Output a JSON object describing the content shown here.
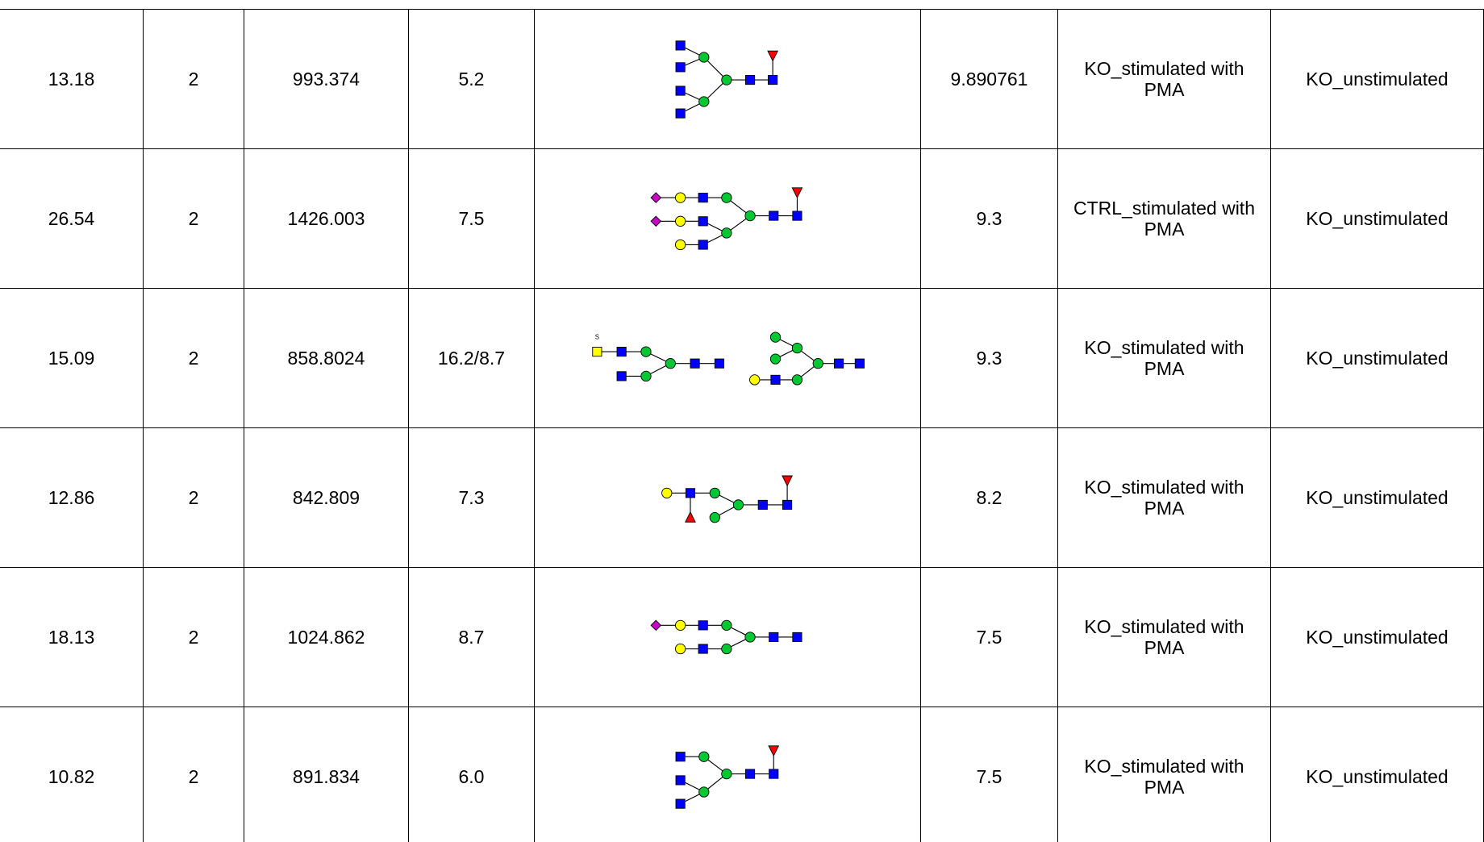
{
  "table": {
    "rows": [
      {
        "cells": [
          "13.18",
          "2",
          "993.374",
          "5.2",
          "9.890761",
          "KO_stimulated with PMA",
          "KO_unstimulated"
        ]
      },
      {
        "cells": [
          "26.54",
          "2",
          "1426.003",
          "7.5",
          "9.3",
          "CTRL_stimulated with PMA",
          "KO_unstimulated"
        ]
      },
      {
        "cells": [
          "15.09",
          "2",
          "858.8024",
          "16.2/8.7",
          "9.3",
          "KO_stimulated with PMA",
          "KO_unstimulated"
        ],
        "glycan_label": "S"
      },
      {
        "cells": [
          "12.86",
          "2",
          "842.809",
          "7.3",
          "8.2",
          "KO_stimulated with PMA",
          "KO_unstimulated"
        ]
      },
      {
        "cells": [
          "18.13",
          "2",
          "1024.862",
          "8.7",
          "7.5",
          "KO_stimulated with PMA",
          "KO_unstimulated"
        ]
      },
      {
        "cells": [
          "10.82",
          "2",
          "891.834",
          "6.0",
          "7.5",
          "KO_stimulated with PMA",
          "KO_unstimulated"
        ]
      }
    ]
  }
}
